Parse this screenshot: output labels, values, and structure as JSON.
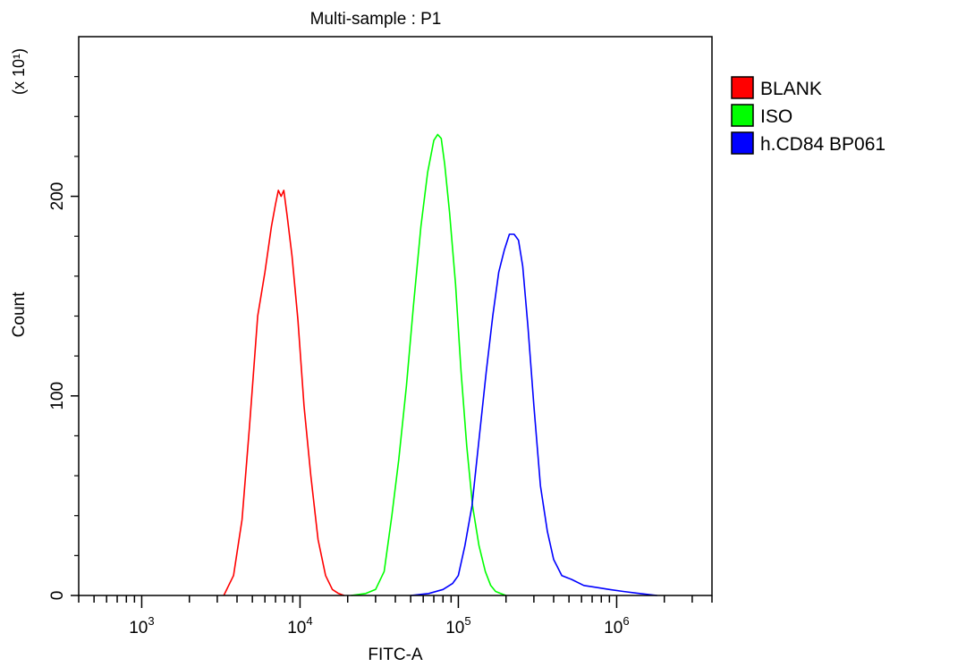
{
  "chart_data": {
    "type": "line",
    "title": "Multi-sample : P1",
    "xlabel": "FITC-A",
    "ylabel": "Count",
    "y_multiplier_label": "(x 10¹)",
    "xscale": "log",
    "xlim": [
      400,
      4000000
    ],
    "ylim": [
      0,
      280
    ],
    "x_ticks": [
      {
        "value": 1000,
        "base": "10",
        "exp": "3"
      },
      {
        "value": 10000,
        "base": "10",
        "exp": "4"
      },
      {
        "value": 100000,
        "base": "10",
        "exp": "5"
      },
      {
        "value": 1000000,
        "base": "10",
        "exp": "6"
      }
    ],
    "y_ticks": [
      {
        "value": 0,
        "label": "0"
      },
      {
        "value": 100,
        "label": "100"
      },
      {
        "value": 200,
        "label": "200"
      }
    ],
    "legend_position": "right",
    "series": [
      {
        "name": "BLANK",
        "color": "#ff0000",
        "x": [
          3300,
          3800,
          4300,
          4800,
          5400,
          6000,
          6600,
          7000,
          7300,
          7600,
          7900,
          8300,
          8900,
          9700,
          10600,
          11700,
          13000,
          14500,
          16000,
          17500,
          19000
        ],
        "y": [
          0,
          10,
          38,
          85,
          140,
          162,
          185,
          196,
          203,
          200,
          203,
          190,
          170,
          138,
          95,
          60,
          28,
          10,
          3,
          1,
          0
        ]
      },
      {
        "name": "ISO",
        "color": "#00ff00",
        "x": [
          21000,
          26000,
          30000,
          34000,
          38000,
          42000,
          47000,
          52000,
          58000,
          64000,
          70000,
          74000,
          78000,
          82000,
          88000,
          96000,
          104000,
          113000,
          123000,
          135000,
          148000,
          160000,
          172000,
          185000,
          200000
        ],
        "y": [
          0,
          1,
          3,
          12,
          40,
          68,
          105,
          145,
          185,
          212,
          228,
          231,
          229,
          216,
          192,
          156,
          112,
          75,
          45,
          25,
          12,
          5,
          2,
          1,
          0
        ]
      },
      {
        "name": "h.CD84 BP061",
        "color": "#0000ff",
        "x": [
          50000,
          65000,
          80000,
          92000,
          100000,
          110000,
          122000,
          135000,
          150000,
          165000,
          180000,
          195000,
          210000,
          225000,
          240000,
          255000,
          275000,
          300000,
          330000,
          365000,
          400000,
          450000,
          520000,
          620000,
          750000,
          900000,
          1100000,
          1400000,
          1800000
        ],
        "y": [
          0,
          1,
          3,
          6,
          10,
          25,
          45,
          78,
          112,
          140,
          162,
          173,
          181,
          181,
          178,
          165,
          135,
          95,
          55,
          32,
          18,
          10,
          8,
          5,
          4,
          3,
          2,
          1,
          0
        ]
      }
    ]
  }
}
